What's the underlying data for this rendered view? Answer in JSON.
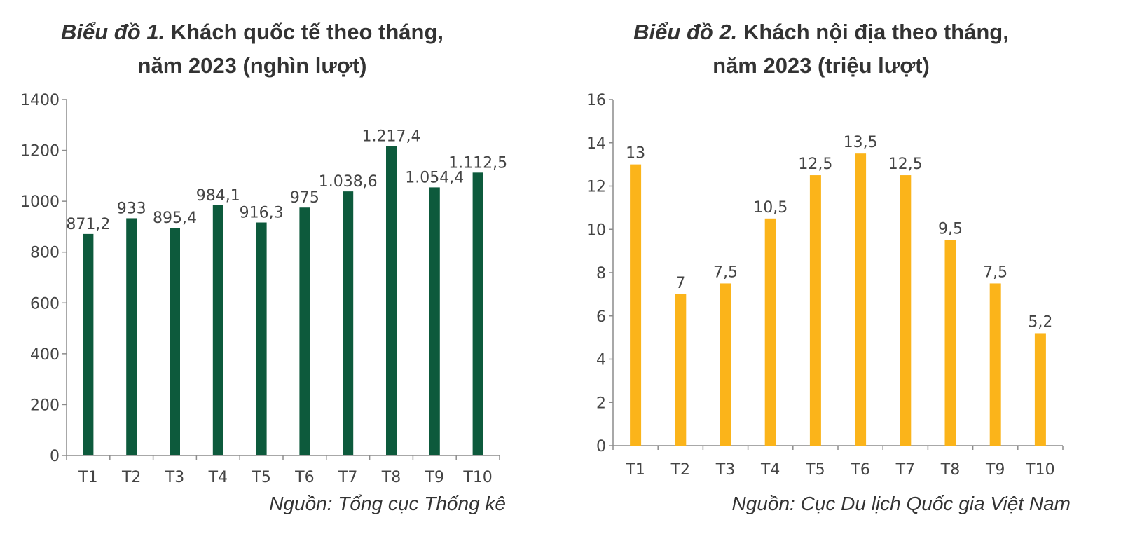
{
  "chart_data": [
    {
      "type": "bar",
      "title_prefix": "Biểu đồ 1.",
      "title_rest": "Khách quốc tế theo tháng,",
      "title_line2": "năm 2023 (nghìn lượt)",
      "source": "Nguồn: Tổng cục Thống kê",
      "categories": [
        "T1",
        "T2",
        "T3",
        "T4",
        "T5",
        "T6",
        "T7",
        "T8",
        "T9",
        "T10"
      ],
      "values": [
        871.2,
        933,
        895.4,
        984.1,
        916.3,
        975,
        1038.6,
        1217.4,
        1054.4,
        1112.5
      ],
      "value_labels": [
        "871,2",
        "933",
        "895,4",
        "984,1",
        "916,3",
        "975",
        "1.038,6",
        "1.217,4",
        "1.054,4",
        "1.112,5"
      ],
      "ylim": [
        0,
        1400
      ],
      "yticks": [
        0,
        200,
        400,
        600,
        800,
        1000,
        1200,
        1400
      ],
      "ytick_labels": [
        "0",
        "200",
        "400",
        "600",
        "800",
        "1000",
        "1200",
        "1400"
      ],
      "color": "#0d5a3c",
      "grid": false,
      "legend": "none"
    },
    {
      "type": "bar",
      "title_prefix": "Biểu đồ 2.",
      "title_rest": "Khách nội địa theo tháng,",
      "title_line2": "năm 2023 (triệu lượt)",
      "source": "Nguồn: Cục Du lịch Quốc gia Việt Nam",
      "categories": [
        "T1",
        "T2",
        "T3",
        "T4",
        "T5",
        "T6",
        "T7",
        "T8",
        "T9",
        "T10"
      ],
      "values": [
        13,
        7,
        7.5,
        10.5,
        12.5,
        13.5,
        12.5,
        9.5,
        7.5,
        5.2
      ],
      "value_labels": [
        "13",
        "7",
        "7,5",
        "10,5",
        "12,5",
        "13,5",
        "12,5",
        "9,5",
        "7,5",
        "5,2"
      ],
      "ylim": [
        0,
        16
      ],
      "yticks": [
        0,
        2,
        4,
        6,
        8,
        10,
        12,
        14,
        16
      ],
      "ytick_labels": [
        "0",
        "2",
        "4",
        "6",
        "8",
        "10",
        "12",
        "14",
        "16"
      ],
      "color": "#fbb41a",
      "grid": false,
      "legend": "none"
    }
  ]
}
